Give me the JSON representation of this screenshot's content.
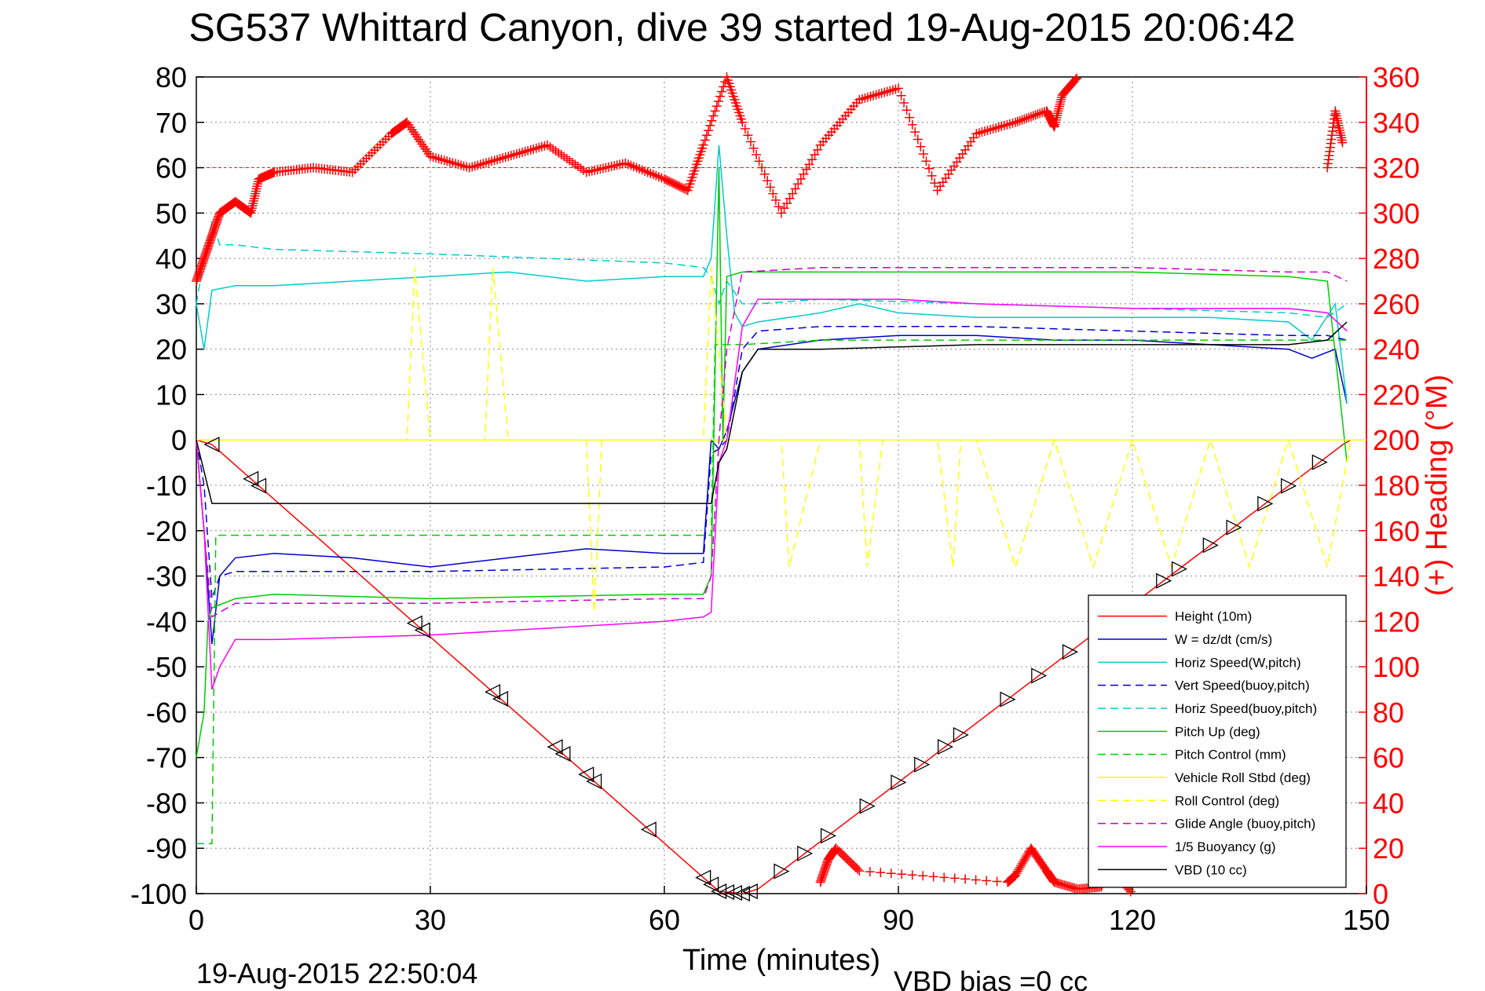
{
  "chart_data": {
    "type": "line",
    "title": "SG537 Whittard Canyon, dive 39 started 19-Aug-2015 20:06:42",
    "xlabel": "Time (minutes)",
    "ylabel_left": "",
    "ylabel_right": "(+) Heading (°M)",
    "xlim": [
      0,
      150
    ],
    "ylim_left": [
      -100,
      80
    ],
    "ylim_right": [
      0,
      360
    ],
    "x_ticks": [
      "0",
      "30",
      "60",
      "90",
      "120",
      "150"
    ],
    "y_ticks_left": [
      "80",
      "70",
      "60",
      "50",
      "40",
      "30",
      "20",
      "10",
      "0",
      "-10",
      "-20",
      "-30",
      "-40",
      "-50",
      "-60",
      "-70",
      "-80",
      "-90",
      "-100"
    ],
    "y_ticks_right": [
      "360",
      "340",
      "320",
      "300",
      "280",
      "260",
      "240",
      "220",
      "200",
      "180",
      "160",
      "140",
      "120",
      "100",
      "80",
      "60",
      "40",
      "20",
      "0"
    ],
    "grid": true,
    "legend_position": "bottom-right",
    "footer_left": "19-Aug-2015 22:50:04",
    "footer_right": "VBD bias =0 cc",
    "heading_reference": 320,
    "series": [
      {
        "name": "Height (10m)",
        "color": "#ff0000",
        "style": "solid",
        "x": [
          0,
          2,
          67,
          70,
          72,
          147,
          148
        ],
        "y": [
          0,
          -1,
          -99.5,
          -100,
          -99,
          -1,
          0
        ]
      },
      {
        "name": "W = dz/dt (cm/s)",
        "color": "#0000cc",
        "style": "solid",
        "x": [
          0,
          1,
          2,
          3,
          5,
          10,
          20,
          30,
          40,
          50,
          60,
          65,
          66,
          67,
          68,
          70,
          72,
          80,
          90,
          100,
          110,
          120,
          130,
          140,
          143,
          146,
          147.5
        ],
        "y": [
          0,
          -20,
          -45,
          -30,
          -26,
          -25,
          -26,
          -28,
          -26,
          -24,
          -25,
          -25,
          0,
          -2,
          2,
          15,
          20,
          22,
          23,
          23,
          22,
          22,
          21,
          20,
          18,
          20,
          8
        ]
      },
      {
        "name": "Horiz Speed(W,pitch)",
        "color": "#00cccc",
        "style": "solid",
        "x": [
          0,
          1,
          2,
          5,
          10,
          20,
          30,
          40,
          50,
          60,
          65,
          66,
          67,
          68,
          69,
          70,
          72,
          80,
          85,
          90,
          100,
          110,
          120,
          130,
          140,
          143,
          146,
          147.5
        ],
        "y": [
          30,
          20,
          33,
          34,
          34,
          35,
          36,
          37,
          35,
          36,
          36,
          40,
          65,
          45,
          28,
          25,
          26,
          28,
          30,
          28,
          27,
          27,
          27,
          27,
          26,
          22,
          30,
          8
        ]
      },
      {
        "name": "Vert Speed(buoy,pitch)",
        "color": "#0000cc",
        "style": "dashed",
        "x": [
          0,
          1,
          2,
          3,
          5,
          10,
          30,
          60,
          65,
          66,
          67,
          68,
          70,
          72,
          80,
          90,
          100,
          120,
          140,
          145,
          147.5
        ],
        "y": [
          0,
          -10,
          -35,
          -30,
          -29,
          -29,
          -29,
          -28,
          -27,
          -3,
          -2,
          0,
          20,
          24,
          25,
          25,
          25,
          24,
          23,
          23,
          22
        ]
      },
      {
        "name": "Horiz Speed(buoy,pitch)",
        "color": "#00cccc",
        "style": "dashed",
        "x": [
          0,
          1,
          2,
          3,
          5,
          10,
          30,
          60,
          65,
          66,
          67,
          68,
          70,
          72,
          80,
          100,
          120,
          140,
          145,
          147.5
        ],
        "y": [
          30,
          40,
          48,
          43,
          43,
          42,
          41,
          39,
          38,
          36,
          30,
          35,
          30,
          30,
          31,
          30,
          29,
          28,
          27,
          30
        ]
      },
      {
        "name": "Pitch Up (deg)",
        "color": "#00cc00",
        "style": "solid",
        "x": [
          0,
          1,
          1.5,
          2,
          5,
          10,
          30,
          60,
          65,
          66,
          67,
          67.5,
          68,
          70,
          80,
          90,
          100,
          120,
          140,
          145,
          147.5
        ],
        "y": [
          -70,
          -60,
          -40,
          -37,
          -35,
          -34,
          -35,
          -34,
          -34,
          -30,
          60,
          0,
          36,
          37,
          37,
          37,
          37,
          37,
          36,
          35,
          -5
        ]
      },
      {
        "name": "Pitch Control (mm)",
        "color": "#00cc00",
        "style": "dashed",
        "x": [
          0,
          2,
          2.5,
          5,
          60,
          66,
          66.5,
          68,
          70,
          80,
          147.5
        ],
        "y": [
          -89,
          -89,
          -21,
          -21,
          -21,
          -21,
          21,
          21,
          21,
          22,
          22
        ]
      },
      {
        "name": "Vehicle Roll Stbd (deg)",
        "color": "#ffff00",
        "style": "solid",
        "x": [
          0,
          150
        ],
        "y": [
          0,
          0
        ]
      },
      {
        "name": "Roll Control (deg)",
        "color": "#ffff00",
        "style": "dashed",
        "x": [
          2,
          10,
          27,
          28,
          30,
          37,
          38,
          40,
          50,
          51,
          52,
          60,
          65,
          66,
          68,
          70,
          75,
          76,
          80,
          85,
          86,
          88,
          90,
          95,
          97,
          98,
          100,
          105,
          110,
          115,
          120,
          125,
          130,
          135,
          140,
          145,
          148
        ],
        "y": [
          0,
          0,
          0,
          38,
          0,
          0,
          38,
          0,
          0,
          -38,
          0,
          0,
          0,
          38,
          0,
          0,
          0,
          -28,
          0,
          0,
          -28,
          0,
          0,
          0,
          -28,
          0,
          0,
          -28,
          0,
          -28,
          0,
          -28,
          0,
          -28,
          0,
          -28,
          0
        ]
      },
      {
        "name": "Glide Angle (buoy,pitch)",
        "color": "#cc00cc",
        "style": "dashed",
        "x": [
          0,
          1,
          2,
          5,
          10,
          30,
          60,
          65,
          66,
          67,
          68,
          70,
          80,
          90,
          100,
          120,
          140,
          145,
          147.5
        ],
        "y": [
          0,
          -20,
          -39,
          -36,
          -36,
          -36,
          -35,
          -35,
          -30,
          0,
          20,
          37,
          38,
          38,
          38,
          38,
          37,
          37,
          35
        ]
      },
      {
        "name": "1/5 Buoyancy (g)",
        "color": "#ff00ff",
        "style": "solid",
        "x": [
          0,
          1,
          2,
          3,
          5,
          10,
          30,
          60,
          65,
          66,
          67,
          68,
          70,
          72,
          80,
          90,
          100,
          120,
          140,
          145,
          147.5
        ],
        "y": [
          0,
          -20,
          -55,
          -50,
          -44,
          -44,
          -43,
          -40,
          -39,
          -38,
          -5,
          0,
          25,
          31,
          31,
          31,
          30,
          29,
          29,
          28,
          24
        ]
      },
      {
        "name": "VBD (10 cc)",
        "color": "#000000",
        "style": "solid",
        "x": [
          0,
          2,
          66,
          67,
          68,
          70,
          72,
          80,
          100,
          120,
          140,
          145,
          147.5
        ],
        "y": [
          0,
          -14,
          -14,
          -5,
          -2,
          15,
          20,
          20,
          21,
          21,
          21,
          22,
          26
        ]
      }
    ],
    "heading_series": {
      "name": "(+) Heading (°M)",
      "color": "#ff0000",
      "marker": "+",
      "x": [
        0,
        1,
        2,
        3,
        5,
        7,
        8,
        10,
        15,
        20,
        25,
        27,
        30,
        35,
        40,
        45,
        50,
        55,
        60,
        63,
        65,
        68,
        70,
        75,
        80,
        85,
        90,
        95,
        100,
        105,
        109,
        110,
        111,
        113
      ],
      "y": [
        270,
        280,
        290,
        300,
        305,
        300,
        315,
        318,
        320,
        318,
        335,
        340,
        325,
        320,
        325,
        330,
        318,
        322,
        315,
        310,
        330,
        360,
        340,
        300,
        330,
        350,
        355,
        310,
        335,
        340,
        345,
        338,
        352,
        360
      ]
    },
    "heading_series_wrapped": {
      "x": [
        80,
        81,
        82,
        85,
        104,
        105,
        107,
        109,
        110,
        113,
        116,
        117,
        120
      ],
      "y": [
        5,
        15,
        20,
        10,
        5,
        8,
        20,
        10,
        5,
        2,
        3,
        12,
        0
      ]
    },
    "heading_series_end": {
      "x": [
        145,
        146,
        147
      ],
      "y": [
        320,
        345,
        330
      ]
    },
    "apogee_markers": {
      "down_x": [
        2,
        7,
        8,
        28,
        29,
        38,
        39,
        46,
        47,
        50,
        51,
        58,
        65,
        66,
        67,
        68,
        69,
        70,
        71
      ],
      "up_x": [
        75,
        78,
        81,
        86,
        90,
        93,
        96,
        98,
        104,
        108,
        112,
        116,
        120,
        124,
        126,
        130,
        133,
        137,
        140,
        144
      ]
    }
  }
}
